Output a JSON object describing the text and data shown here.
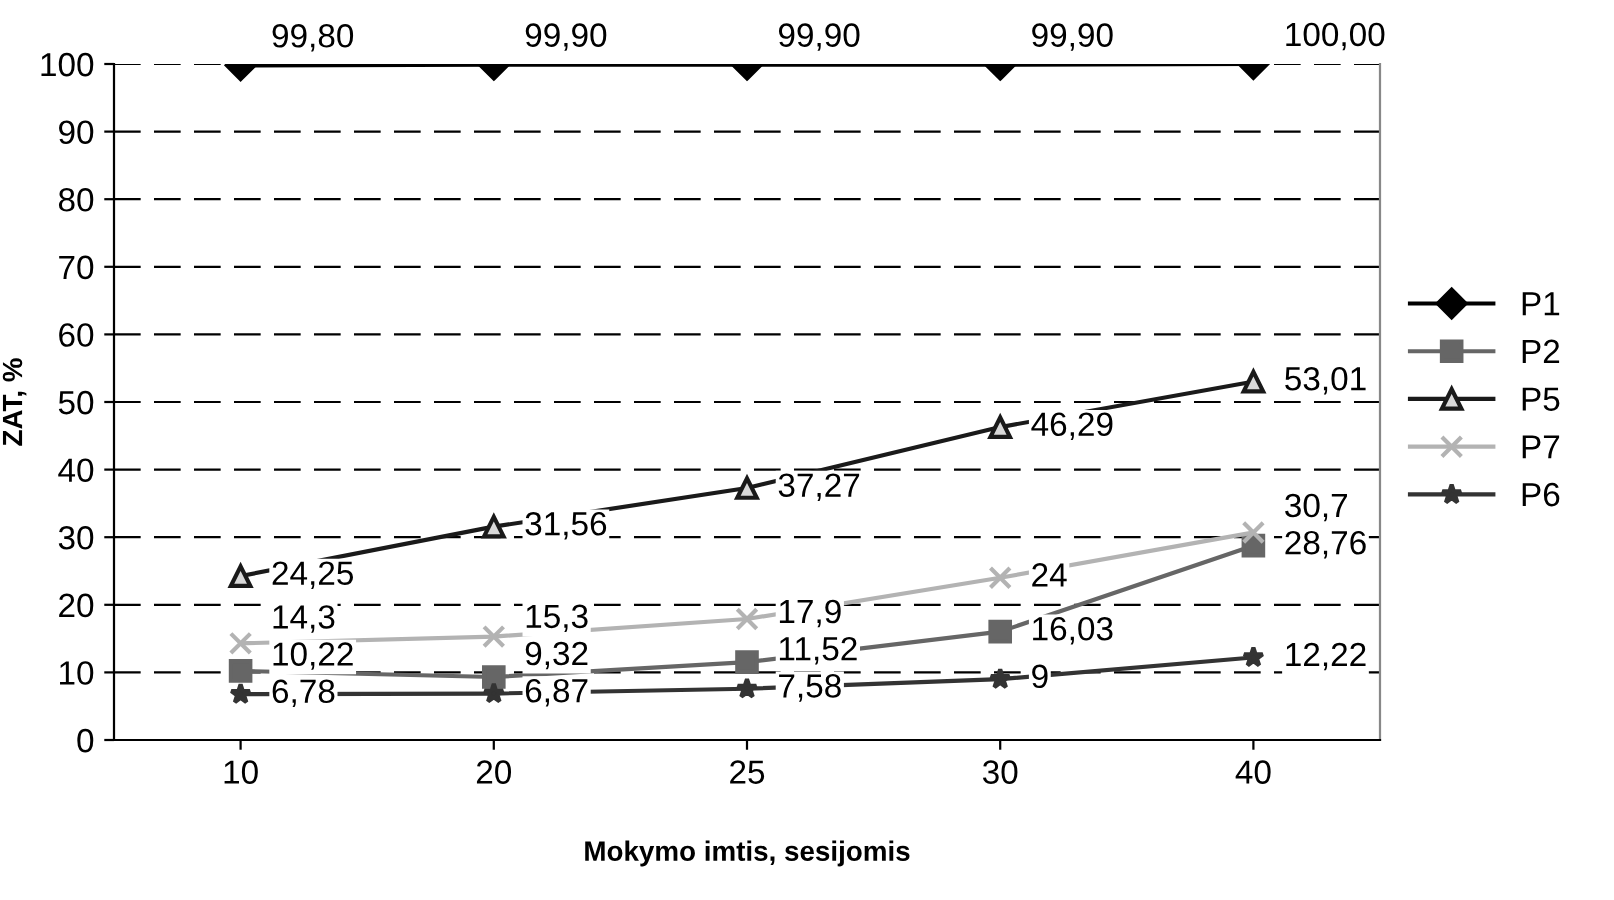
{
  "chart_data": {
    "type": "line",
    "xlabel": "Mokymo imtis, sesijomis",
    "ylabel": "ZAT, %",
    "categories": [
      "10",
      "20",
      "25",
      "30",
      "40"
    ],
    "ylim": [
      0,
      100
    ],
    "yticks": [
      0,
      10,
      20,
      30,
      40,
      50,
      60,
      70,
      80,
      90,
      100
    ],
    "grid": "y",
    "legend": "right",
    "series": [
      {
        "name": "P1",
        "color": "#000000",
        "marker": "diamond",
        "values": [
          99.8,
          99.9,
          99.9,
          99.9,
          100.0
        ],
        "value_labels": [
          "99,80",
          "99,90",
          "99,90",
          "99,90",
          "100,00"
        ]
      },
      {
        "name": "P2",
        "color": "#666666",
        "marker": "square",
        "values": [
          10.22,
          9.32,
          11.52,
          16.03,
          28.76
        ],
        "value_labels": [
          "10,22",
          "9,32",
          "11,52",
          "16,03",
          "28,76"
        ]
      },
      {
        "name": "P5",
        "color": "#1a1a1a",
        "marker": "triangle",
        "values": [
          24.25,
          31.56,
          37.27,
          46.29,
          53.01
        ],
        "value_labels": [
          "24,25",
          "31,56",
          "37,27",
          "46,29",
          "53,01"
        ]
      },
      {
        "name": "P7",
        "color": "#b3b3b3",
        "marker": "cross",
        "values": [
          14.3,
          15.3,
          17.9,
          24,
          30.7
        ],
        "value_labels": [
          "14,3",
          "15,3",
          "17,9",
          "24",
          "30,7"
        ]
      },
      {
        "name": "P6",
        "color": "#333333",
        "marker": "star",
        "values": [
          6.78,
          6.87,
          7.58,
          9,
          12.22
        ],
        "value_labels": [
          "6,78",
          "6,87",
          "7,58",
          "9",
          "12,22"
        ]
      }
    ]
  }
}
